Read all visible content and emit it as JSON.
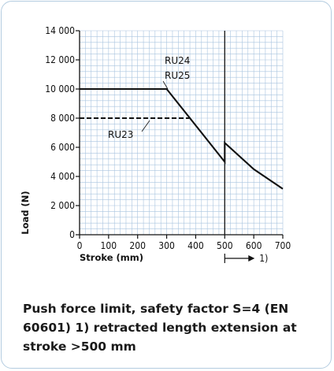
{
  "chart_data": {
    "type": "line",
    "xlabel": "Stroke   (mm)",
    "ylabel": "Load  (N)",
    "xlim": [
      0,
      700
    ],
    "ylim": [
      0,
      14000
    ],
    "x_ticks": [
      "0",
      "100",
      "200",
      "300",
      "400",
      "500",
      "600",
      "700"
    ],
    "y_ticks": [
      "0",
      "2 000",
      "4 000",
      "6 000",
      "8 000",
      "10 000",
      "12 000",
      "14 000"
    ],
    "grid": true,
    "series": [
      {
        "name": "RU24\nRU25",
        "style": "solid",
        "points": [
          [
            0,
            10000
          ],
          [
            300,
            10000
          ],
          [
            500,
            5000
          ],
          [
            500,
            6300
          ],
          [
            600,
            4500
          ],
          [
            700,
            3150
          ]
        ]
      },
      {
        "name": "RU23",
        "style": "dashed",
        "points": [
          [
            0,
            8000
          ],
          [
            385,
            8000
          ]
        ]
      }
    ],
    "reference_line_x": 500,
    "annotation": "1)"
  },
  "caption": "Push force limit, safety factor S=4 (EN 60601) 1) retracted length extension at stroke >500 mm",
  "colors": {
    "grid": "#a9c4df",
    "line": "#111111",
    "border": "#b4cce0"
  }
}
